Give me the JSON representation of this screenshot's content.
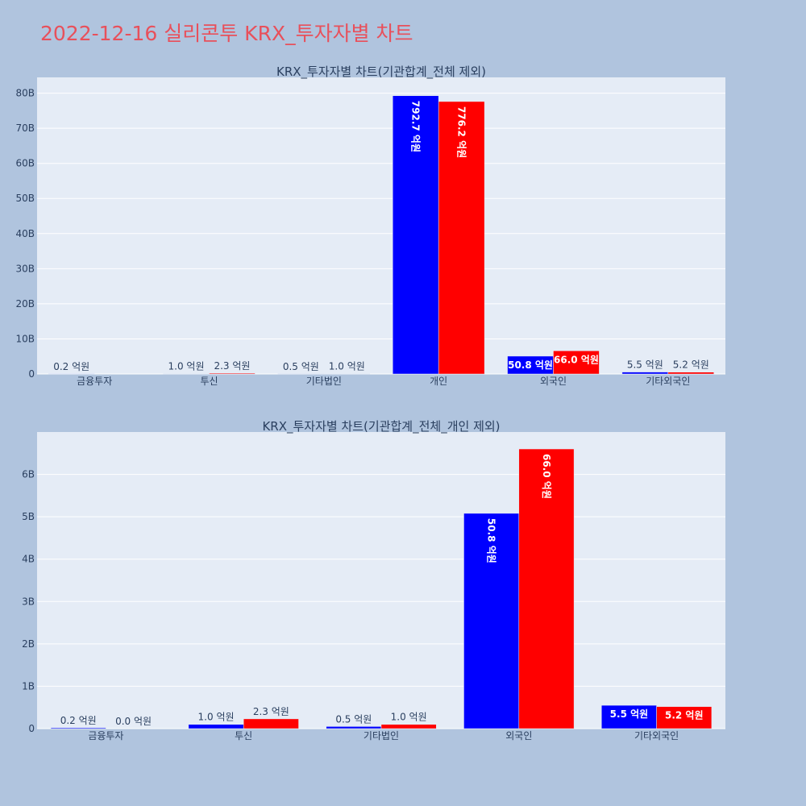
{
  "page": {
    "title": "2022-12-16 실리콘투 KRX_투자자별 차트",
    "background": "#b0c4de",
    "title_color": "#e8505b"
  },
  "chart_data": [
    {
      "type": "bar",
      "title": "KRX_투자자별 차트(기관합계_전체 제외)",
      "categories": [
        "금융투자",
        "투신",
        "기타법인",
        "개인",
        "외국인",
        "기타외국인"
      ],
      "series": [
        {
          "color": "#0000ff",
          "values": [
            20000000,
            100000000,
            50000000,
            79270000000,
            5080000000,
            550000000
          ],
          "labels": [
            "0.2 억원",
            "1.0 억원",
            "0.5 억원",
            "792.7 억원",
            "50.8 억원",
            "5.5 억원"
          ]
        },
        {
          "color": "#ff0000",
          "values": [
            0,
            230000000,
            100000000,
            77620000000,
            6600000000,
            520000000
          ],
          "labels": [
            "",
            "2.3 억원",
            "1.0 억원",
            "776.2 억원",
            "66.0 억원",
            "5.2 억원"
          ]
        }
      ],
      "ylim": [
        0,
        84500000000
      ],
      "yticks": [
        0,
        10000000000,
        20000000000,
        30000000000,
        40000000000,
        50000000000,
        60000000000,
        70000000000,
        80000000000
      ],
      "ytick_labels": [
        "0",
        "10B",
        "20B",
        "30B",
        "40B",
        "50B",
        "60B",
        "70B",
        "80B"
      ],
      "xlabel": "",
      "ylabel": "",
      "grid": true,
      "legend": "none"
    },
    {
      "type": "bar",
      "title": "KRX_투자자별 차트(기관합계_전체_개인 제외)",
      "categories": [
        "금융투자",
        "투신",
        "기타법인",
        "외국인",
        "기타외국인"
      ],
      "series": [
        {
          "color": "#0000ff",
          "values": [
            20000000,
            100000000,
            50000000,
            5080000000,
            550000000
          ],
          "labels": [
            "0.2 억원",
            "1.0 억원",
            "0.5 억원",
            "50.8 억원",
            "5.5 억원"
          ]
        },
        {
          "color": "#ff0000",
          "values": [
            0,
            230000000,
            100000000,
            6600000000,
            520000000
          ],
          "labels": [
            "0.0 억원",
            "2.3 억원",
            "1.0 억원",
            "66.0 억원",
            "5.2 억원"
          ]
        }
      ],
      "ylim": [
        0,
        7000000000
      ],
      "yticks": [
        0,
        1000000000,
        2000000000,
        3000000000,
        4000000000,
        5000000000,
        6000000000
      ],
      "ytick_labels": [
        "0",
        "1B",
        "2B",
        "3B",
        "4B",
        "5B",
        "6B"
      ],
      "xlabel": "",
      "ylabel": "",
      "grid": true,
      "legend": "none"
    }
  ]
}
